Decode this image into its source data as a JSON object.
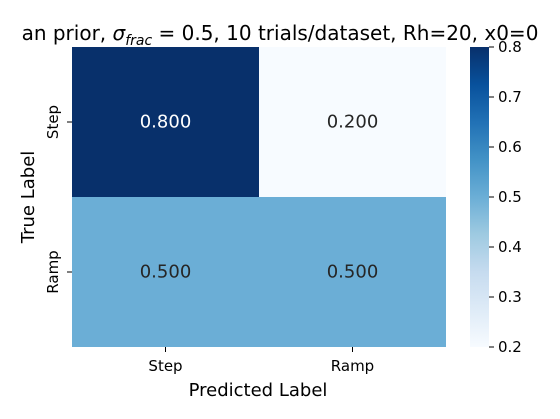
{
  "chart_data": {
    "type": "heatmap",
    "title_parts": {
      "before": "an prior, ",
      "sigma": "σ",
      "subscript": "frac",
      "after": " = 0.5, 10 trials/dataset, Rh=20, x0=0"
    },
    "xlabel": "Predicted Label",
    "ylabel": "True Label",
    "x_categories": [
      "Step",
      "Ramp"
    ],
    "y_categories": [
      "Step",
      "Ramp"
    ],
    "values": [
      [
        0.8,
        0.2
      ],
      [
        0.5,
        0.5
      ]
    ],
    "cell_labels": [
      [
        "0.800",
        "0.200"
      ],
      [
        "0.500",
        "0.500"
      ]
    ],
    "colorbar": {
      "range": [
        0.2,
        0.8
      ],
      "ticks": [
        "0.8",
        "0.7",
        "0.6",
        "0.5",
        "0.4",
        "0.3",
        "0.2"
      ],
      "colormap": "Blues",
      "color_stops": [
        "#f7fbff",
        "#deebf7",
        "#c6dbef",
        "#9ecae1",
        "#6baed6",
        "#4292c6",
        "#2171b5",
        "#08519c",
        "#08306b"
      ]
    }
  }
}
